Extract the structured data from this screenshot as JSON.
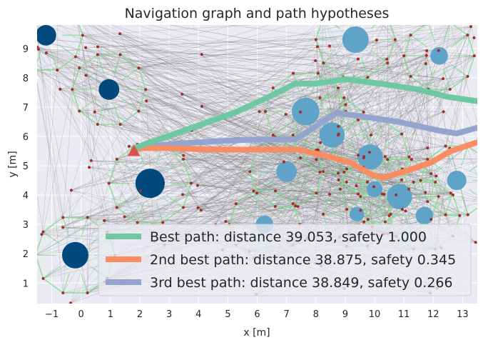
{
  "chart_data": {
    "type": "line",
    "title": "Navigation graph and path hypotheses",
    "xlabel": "x [m]",
    "ylabel": "y [m]",
    "xlim": [
      -1.5,
      13.5
    ],
    "ylim": [
      0.3,
      9.8
    ],
    "xticks": [
      -1,
      0,
      1,
      2,
      3,
      4,
      5,
      6,
      7,
      8,
      9,
      10,
      11,
      12,
      13
    ],
    "yticks": [
      1,
      2,
      3,
      4,
      5,
      6,
      7,
      8,
      9
    ],
    "grid": true,
    "legend_position": "bottom-right",
    "start_marker": {
      "x": 1.8,
      "y": 5.5,
      "color": "#d9534f"
    },
    "series": [
      {
        "name": "Best path: distance 39.053, safety 1.000",
        "color": "#6fc8a4",
        "x": [
          1.8,
          3.5,
          5.2,
          6.3,
          7.3,
          8.0,
          9.0,
          10.2,
          11.5,
          12.5,
          13.5
        ],
        "y": [
          5.6,
          6.2,
          6.8,
          7.3,
          7.8,
          7.8,
          7.95,
          7.8,
          7.6,
          7.35,
          7.2
        ]
      },
      {
        "name": "2nd best path: distance 38.875, safety 0.345",
        "color": "#fa8c64",
        "x": [
          1.8,
          3.0,
          4.5,
          6.0,
          7.4,
          8.3,
          9.2,
          9.9,
          10.3,
          11.0,
          11.9,
          12.6,
          13.5
        ],
        "y": [
          5.6,
          5.6,
          5.55,
          5.55,
          5.55,
          5.35,
          5.1,
          4.7,
          4.6,
          4.8,
          5.1,
          5.5,
          5.8
        ]
      },
      {
        "name": "3rd best path: distance 38.849, safety 0.266",
        "color": "#93a5ce",
        "x": [
          1.8,
          3.2,
          4.8,
          6.0,
          7.3,
          8.0,
          8.7,
          9.8,
          10.8,
          11.5,
          12.2,
          12.8,
          13.5
        ],
        "y": [
          5.6,
          5.75,
          5.85,
          5.9,
          5.9,
          6.35,
          6.8,
          6.65,
          6.5,
          6.35,
          6.2,
          6.1,
          6.3
        ]
      }
    ],
    "obstacles": [
      {
        "x": -1.2,
        "y": 9.45,
        "r": 0.35,
        "color": "#024a7d"
      },
      {
        "x": 0.95,
        "y": 7.6,
        "r": 0.35,
        "color": "#024a7d"
      },
      {
        "x": 2.35,
        "y": 4.4,
        "r": 0.5,
        "color": "#024a7d"
      },
      {
        "x": -0.2,
        "y": 1.95,
        "r": 0.45,
        "color": "#024a7d"
      },
      {
        "x": 9.35,
        "y": 9.3,
        "r": 0.45,
        "color": "#5fa3c8"
      },
      {
        "x": 12.2,
        "y": 8.75,
        "r": 0.3,
        "color": "#5fa3c8"
      },
      {
        "x": 7.65,
        "y": 6.85,
        "r": 0.47,
        "color": "#5fa3c8"
      },
      {
        "x": 8.55,
        "y": 6.05,
        "r": 0.43,
        "color": "#5fa3c8"
      },
      {
        "x": 9.85,
        "y": 5.3,
        "r": 0.43,
        "color": "#5fa3c8"
      },
      {
        "x": 7.0,
        "y": 4.8,
        "r": 0.35,
        "color": "#5fa3c8"
      },
      {
        "x": 10.0,
        "y": 4.2,
        "r": 0.27,
        "color": "#5fa3c8"
      },
      {
        "x": 10.85,
        "y": 3.95,
        "r": 0.43,
        "color": "#5fa3c8"
      },
      {
        "x": 12.8,
        "y": 4.5,
        "r": 0.33,
        "color": "#5fa3c8"
      },
      {
        "x": 9.4,
        "y": 3.35,
        "r": 0.25,
        "color": "#5fa3c8"
      },
      {
        "x": 11.7,
        "y": 3.3,
        "r": 0.3,
        "color": "#5fa3c8"
      },
      {
        "x": 6.25,
        "y": 3.0,
        "r": 0.3,
        "color": "#5fa3c8"
      }
    ]
  }
}
